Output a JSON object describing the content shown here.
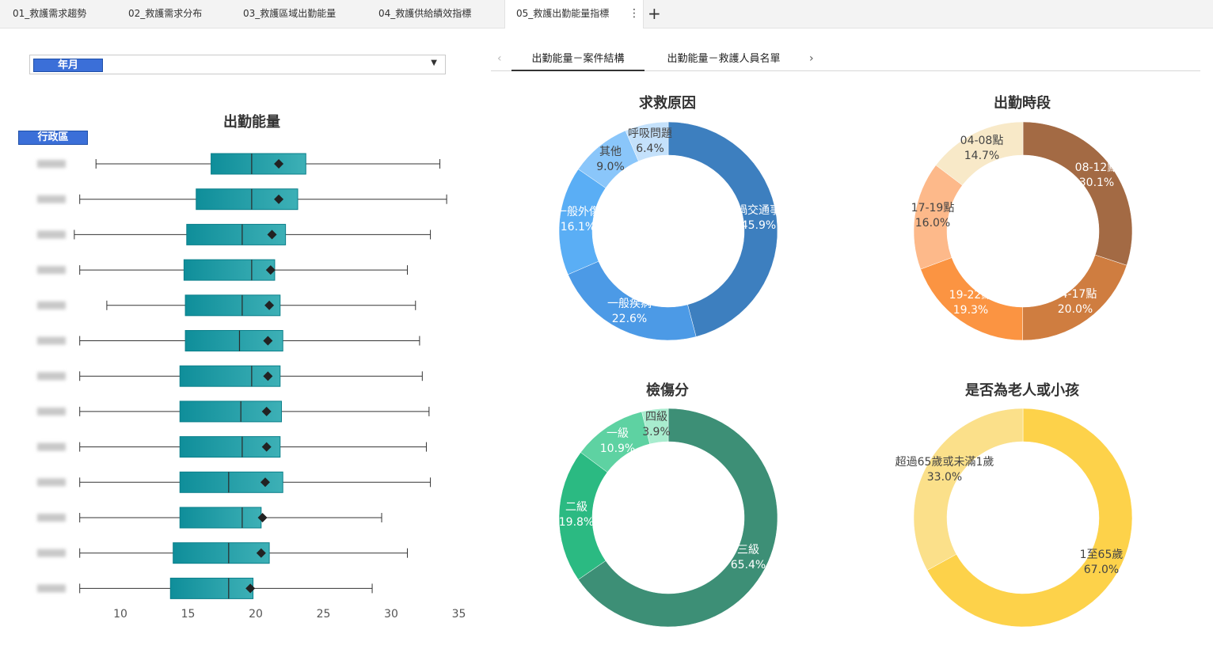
{
  "tabs": [
    {
      "label": "01_救護需求趨勢",
      "active": false
    },
    {
      "label": "02_救護需求分布",
      "active": false
    },
    {
      "label": "03_救護區域出勤能量",
      "active": false
    },
    {
      "label": "04_救護供給績效指標",
      "active": false
    },
    {
      "label": "05_救護出勤能量指標",
      "active": true
    }
  ],
  "slicer": {
    "label": "年月"
  },
  "subnav": {
    "tabs": [
      {
        "label": "出勤能量－案件結構",
        "active": true
      },
      {
        "label": "出勤能量－救護人員名單",
        "active": false
      }
    ]
  },
  "chart_data": [
    {
      "type": "boxplot",
      "title": "出勤能量",
      "axis_badge": "行政區",
      "xlim": [
        7,
        35
      ],
      "xticks": [
        10,
        15,
        20,
        25,
        30,
        35
      ],
      "box_color": "#1597a3",
      "mean_marker_color": "#222222",
      "categories": [
        "",
        "",
        "",
        "",
        "",
        "",
        "",
        "",
        "",
        "",
        "",
        "",
        ""
      ],
      "boxes": [
        {
          "min": 8.2,
          "q1": 16.7,
          "median": 19.7,
          "q3": 23.7,
          "max": 33.6,
          "mean": 21.7
        },
        {
          "min": 7.0,
          "q1": 15.6,
          "median": 19.7,
          "q3": 23.1,
          "max": 34.1,
          "mean": 21.7
        },
        {
          "min": 6.6,
          "q1": 14.9,
          "median": 19.0,
          "q3": 22.2,
          "max": 32.9,
          "mean": 21.2
        },
        {
          "min": 7.0,
          "q1": 14.7,
          "median": 19.7,
          "q3": 21.4,
          "max": 31.2,
          "mean": 21.1
        },
        {
          "min": 9.0,
          "q1": 14.8,
          "median": 19.0,
          "q3": 21.8,
          "max": 31.8,
          "mean": 21.0
        },
        {
          "min": 7.0,
          "q1": 14.8,
          "median": 18.8,
          "q3": 22.0,
          "max": 32.1,
          "mean": 20.9
        },
        {
          "min": 7.0,
          "q1": 14.4,
          "median": 19.7,
          "q3": 21.8,
          "max": 32.3,
          "mean": 20.9
        },
        {
          "min": 7.0,
          "q1": 14.4,
          "median": 18.9,
          "q3": 21.9,
          "max": 32.8,
          "mean": 20.8
        },
        {
          "min": 7.0,
          "q1": 14.4,
          "median": 19.0,
          "q3": 21.8,
          "max": 32.6,
          "mean": 20.8
        },
        {
          "min": 7.0,
          "q1": 14.4,
          "median": 18.0,
          "q3": 22.0,
          "max": 32.9,
          "mean": 20.7
        },
        {
          "min": 7.0,
          "q1": 14.4,
          "median": 19.0,
          "q3": 20.4,
          "max": 29.3,
          "mean": 20.5
        },
        {
          "min": 7.0,
          "q1": 13.9,
          "median": 18.0,
          "q3": 21.0,
          "max": 31.2,
          "mean": 20.4
        },
        {
          "min": 7.0,
          "q1": 13.7,
          "median": 18.0,
          "q3": 19.8,
          "max": 28.6,
          "mean": 19.6
        }
      ]
    },
    {
      "type": "pie",
      "title": "求救原因",
      "slices": [
        {
          "label": "車禍交通事故",
          "value": 45.9,
          "pct": "45.9%",
          "color": "#3d7fbf"
        },
        {
          "label": "一般疾病",
          "value": 22.6,
          "pct": "22.6%",
          "color": "#4c9ae6"
        },
        {
          "label": "一般外傷",
          "value": 16.1,
          "pct": "16.1%",
          "color": "#5aaef5"
        },
        {
          "label": "其他",
          "value": 9.0,
          "pct": "9.0%",
          "color": "#8ac6fa"
        },
        {
          "label": "呼吸問題",
          "value": 6.4,
          "pct": "6.4%",
          "color": "#c4e1fb"
        }
      ]
    },
    {
      "type": "pie",
      "title": "出勤時段",
      "slices": [
        {
          "label": "08-12點",
          "value": 30.1,
          "pct": "30.1%",
          "color": "#a36a44"
        },
        {
          "label": "14-17點",
          "value": 20.0,
          "pct": "20.0%",
          "color": "#cf7d40"
        },
        {
          "label": "19-22點",
          "value": 19.3,
          "pct": "19.3%",
          "color": "#fb9442"
        },
        {
          "label": "17-19點",
          "value": 16.0,
          "pct": "16.0%",
          "color": "#fdb98a"
        },
        {
          "label": "04-08點",
          "value": 14.7,
          "pct": "14.7%",
          "color": "#f8e9c8"
        }
      ]
    },
    {
      "type": "pie",
      "title": "檢傷分",
      "slices": [
        {
          "label": "三級",
          "value": 65.4,
          "pct": "65.4%",
          "color": "#3d8f76"
        },
        {
          "label": "二級",
          "value": 19.8,
          "pct": "19.8%",
          "color": "#2bba82"
        },
        {
          "label": "一級",
          "value": 10.9,
          "pct": "10.9%",
          "color": "#5ed2a2"
        },
        {
          "label": "四級",
          "value": 3.9,
          "pct": "3.9%",
          "color": "#a8ecce"
        }
      ]
    },
    {
      "type": "pie",
      "title": "是否為老人或小孩",
      "slices": [
        {
          "label": "1至65歲",
          "value": 67.0,
          "pct": "67.0%",
          "color": "#fdd24a"
        },
        {
          "label": "超過65歲或未滿1歲",
          "value": 33.0,
          "pct": "33.0%",
          "color": "#fbe08a"
        }
      ]
    }
  ]
}
